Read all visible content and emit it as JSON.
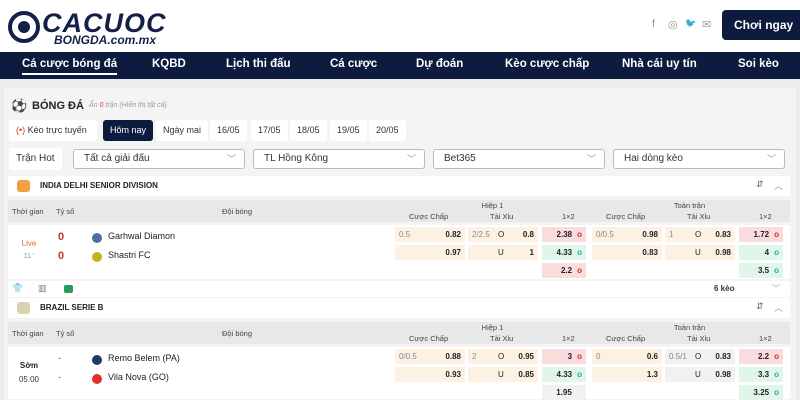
{
  "brand": {
    "line1": "CACUOC",
    "line2": "BONGDA.com.mx"
  },
  "social": [
    {
      "icon": "facebook-icon",
      "glyph": "f"
    },
    {
      "icon": "instagram-icon",
      "glyph": "◎"
    },
    {
      "icon": "twitter-icon",
      "glyph": "🐦"
    },
    {
      "icon": "mail-icon",
      "glyph": "✉"
    }
  ],
  "play_button": "Chơi ngay",
  "nav": [
    "Cá cược bóng đá",
    "KQBD",
    "Lịch thi đấu",
    "Cá cược",
    "Dự đoán",
    "Kèo cược chấp",
    "Nhà cái uy tín",
    "Soi kèo"
  ],
  "section": {
    "title": "BÓNG ĐÁ",
    "hidden_prefix": "Ẩn",
    "hidden_count": "0",
    "hidden_suffix": "trận (Hiển thị tất cả)"
  },
  "date_tabs": [
    "Kèo trực tuyến",
    "Hôm nay",
    "Ngày mai",
    "16/05",
    "17/05",
    "18/05",
    "19/05",
    "20/05"
  ],
  "filters": {
    "hot": "Trận Hot",
    "league": "Tất cả giải đấu",
    "timezone": "TL Hồng Kông",
    "bookmaker": "Bet365",
    "view": "Hai dòng kèo"
  },
  "headers": {
    "time": "Thời gian",
    "score": "Tỷ số",
    "teams": "Đội bóng",
    "half": "Hiệp 1",
    "full": "Toàn trận",
    "handicap": "Cược Chấp",
    "ou": "Tài Xỉu",
    "x12": "1×2"
  },
  "colors": {
    "navy": "#0d1b3e",
    "red_odds": "#fadcdc",
    "green_odds": "#e0f6ea",
    "handicap_bg": "#fdf1e4",
    "live": "#e0702a",
    "score": "#c0392b"
  },
  "leagues": [
    {
      "name": "INDIA DELHI SENIOR DIVISION",
      "status": "Live",
      "minute": "11 '",
      "home": "Garhwal Diamon",
      "away": "Shastri FC",
      "home_score": "0",
      "away_score": "0",
      "h1": {
        "hc": [
          "0.5",
          "0.82",
          "",
          "0.97"
        ],
        "ou": [
          "2/2.5",
          "O",
          "0.8",
          "",
          "U",
          "1"
        ],
        "x12": [
          [
            "2.38",
            "red"
          ],
          [
            "4.33",
            "grn"
          ],
          [
            "2.2",
            "red"
          ]
        ]
      },
      "ft": {
        "hc": [
          "0/0.5",
          "0.98",
          "",
          "0.83"
        ],
        "ou": [
          "1",
          "O",
          "0.83",
          "",
          "U",
          "0.98"
        ],
        "x12": [
          [
            "1.72",
            "red"
          ],
          [
            "4",
            "grn"
          ],
          [
            "3.5",
            "grn"
          ]
        ]
      },
      "more": "6 kèo"
    },
    {
      "name": "BRAZIL SERIE B",
      "status": "Sớm",
      "minute": "05:00",
      "home": "Remo Belem (PA)",
      "away": "Vila Nova (GO)",
      "home_score": "-",
      "away_score": "-",
      "h1": {
        "hc": [
          "0/0.5",
          "0.88",
          "",
          "0.93"
        ],
        "ou": [
          "2",
          "O",
          "0.95",
          "",
          "U",
          "0.85"
        ],
        "x12": [
          [
            "3",
            "red"
          ],
          [
            "4.33",
            "grn"
          ],
          [
            "1.95",
            "gry"
          ]
        ]
      },
      "ft": {
        "hc": [
          "0",
          "0.6",
          "",
          "1.3"
        ],
        "ou": [
          "0.5/1",
          "O",
          "0.83",
          "",
          "U",
          "0.98"
        ],
        "x12": [
          [
            "2.2",
            "red"
          ],
          [
            "3.3",
            "grn"
          ],
          [
            "3.25",
            "grn"
          ]
        ]
      }
    }
  ]
}
